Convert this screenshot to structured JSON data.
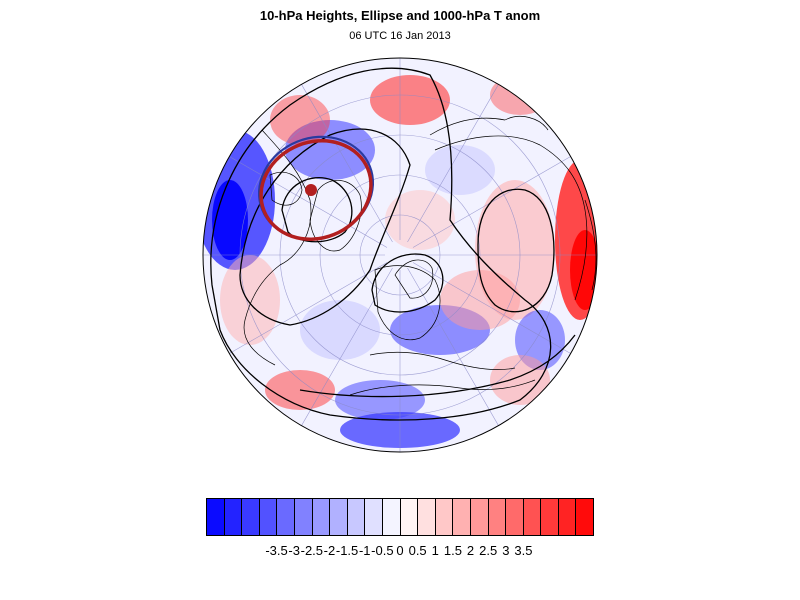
{
  "title": "10-hPa Heights, Ellipse and 1000-hPa T anom",
  "subtitle": "06 UTC 16 Jan 2013",
  "colorbar": {
    "colors": [
      "#0b0bff",
      "#2323ff",
      "#3a3aff",
      "#5252ff",
      "#6a6aff",
      "#8181ff",
      "#9999ff",
      "#b1b1ff",
      "#c8c8ff",
      "#e0e0ff",
      "#f4f4ff",
      "#fff4f4",
      "#ffe0e0",
      "#ffc8c8",
      "#ffb1b1",
      "#ff9999",
      "#ff8181",
      "#ff6a6a",
      "#ff5252",
      "#ff3a3a",
      "#ff2323",
      "#ff0b0b"
    ],
    "labels": [
      "-3.5",
      "-3",
      "-2.5",
      "-2",
      "-1.5",
      "-1",
      "-0.5",
      "0",
      "0.5",
      "1",
      "1.5",
      "2",
      "2.5",
      "3",
      "3.5"
    ]
  },
  "map": {
    "projection": "polar-stereographic",
    "anomaly_colors": {
      "cold": "#3b3bff",
      "warm": "#ff3535"
    },
    "ellipse_color": "#b21f1f",
    "vortex_center_color": "#b21f1f"
  }
}
